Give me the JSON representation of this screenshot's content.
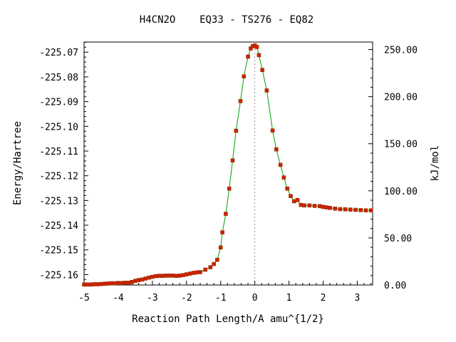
{
  "chart_data": {
    "type": "line",
    "title": "H4CN2O    EQ33 - TS276 - EQ82",
    "xlabel": "Reaction Path Length/A amu^{1/2}",
    "ylabel_left": "Energy/Hartree",
    "ylabel_right": "kJ/mol",
    "xlim": [
      -5.0,
      3.45
    ],
    "ylim_left": [
      -225.1642,
      -225.0659
    ],
    "ylim_right": [
      0,
      258
    ],
    "x_ticks": [
      -5,
      -4,
      -3,
      -2,
      -1,
      0,
      1,
      2,
      3
    ],
    "x_tick_labels": [
      "-5",
      "-4",
      "-3",
      "-2",
      "-1",
      "0",
      "1",
      "2",
      "3"
    ],
    "y_ticks_left": [
      -225.07,
      -225.08,
      -225.09,
      -225.1,
      -225.11,
      -225.12,
      -225.13,
      -225.14,
      -225.15,
      -225.16
    ],
    "y_tick_labels_left": [
      "-225.07",
      "-225.08",
      "-225.09",
      "-225.10",
      "-225.11",
      "-225.12",
      "-225.13",
      "-225.14",
      "-225.15",
      "-225.16"
    ],
    "y_ticks_right": [
      0,
      50,
      100,
      150,
      200,
      250
    ],
    "y_tick_labels_right": [
      "0.00",
      "50.00",
      "100.00",
      "150.00",
      "200.00",
      "250.00"
    ],
    "ts_marker_x": 0.0,
    "series": [
      {
        "line_color": "#00a000",
        "marker_color": "#cc2200",
        "points": [
          [
            -5.0,
            -225.164
          ],
          [
            -4.9,
            -225.164
          ],
          [
            -4.8,
            -225.164
          ],
          [
            -4.7,
            -225.1639
          ],
          [
            -4.6,
            -225.1639
          ],
          [
            -4.5,
            -225.1638
          ],
          [
            -4.4,
            -225.1637
          ],
          [
            -4.3,
            -225.1636
          ],
          [
            -4.2,
            -225.1635
          ],
          [
            -4.1,
            -225.1635
          ],
          [
            -4.0,
            -225.1634
          ],
          [
            -3.9,
            -225.1634
          ],
          [
            -3.8,
            -225.1633
          ],
          [
            -3.7,
            -225.1633
          ],
          [
            -3.6,
            -225.163
          ],
          [
            -3.5,
            -225.1625
          ],
          [
            -3.4,
            -225.1622
          ],
          [
            -3.3,
            -225.162
          ],
          [
            -3.2,
            -225.1616
          ],
          [
            -3.1,
            -225.1612
          ],
          [
            -3.0,
            -225.1609
          ],
          [
            -2.9,
            -225.1606
          ],
          [
            -2.8,
            -225.1605
          ],
          [
            -2.7,
            -225.1605
          ],
          [
            -2.6,
            -225.1604
          ],
          [
            -2.5,
            -225.1604
          ],
          [
            -2.4,
            -225.1604
          ],
          [
            -2.3,
            -225.1605
          ],
          [
            -2.2,
            -225.1604
          ],
          [
            -2.1,
            -225.1602
          ],
          [
            -2.0,
            -225.1599
          ],
          [
            -1.9,
            -225.1596
          ],
          [
            -1.8,
            -225.1593
          ],
          [
            -1.7,
            -225.1591
          ],
          [
            -1.6,
            -225.159
          ],
          [
            -1.45,
            -225.158
          ],
          [
            -1.3,
            -225.157
          ],
          [
            -1.2,
            -225.1557
          ],
          [
            -1.1,
            -225.154
          ],
          [
            -1.0,
            -225.149
          ],
          [
            -0.95,
            -225.1429
          ],
          [
            -0.85,
            -225.1354
          ],
          [
            -0.75,
            -225.1252
          ],
          [
            -0.65,
            -225.1138
          ],
          [
            -0.55,
            -225.1018
          ],
          [
            -0.42,
            -225.0898
          ],
          [
            -0.32,
            -225.0798
          ],
          [
            -0.2,
            -225.0718
          ],
          [
            -0.12,
            -225.0685
          ],
          [
            -0.06,
            -225.0676
          ],
          [
            0.0,
            -225.0673
          ],
          [
            0.06,
            -225.0679
          ],
          [
            0.12,
            -225.0712
          ],
          [
            0.22,
            -225.0772
          ],
          [
            0.35,
            -225.0855
          ],
          [
            0.52,
            -225.1017
          ],
          [
            0.63,
            -225.1093
          ],
          [
            0.75,
            -225.1156
          ],
          [
            0.85,
            -225.1207
          ],
          [
            0.95,
            -225.1252
          ],
          [
            1.05,
            -225.1282
          ],
          [
            1.15,
            -225.1303
          ],
          [
            1.25,
            -225.1298
          ],
          [
            1.35,
            -225.1318
          ],
          [
            1.45,
            -225.132
          ],
          [
            1.6,
            -225.132
          ],
          [
            1.75,
            -225.1322
          ],
          [
            1.9,
            -225.1323
          ],
          [
            2.0,
            -225.1326
          ],
          [
            2.1,
            -225.1328
          ],
          [
            2.2,
            -225.133
          ],
          [
            2.35,
            -225.1333
          ],
          [
            2.5,
            -225.1335
          ],
          [
            2.65,
            -225.1336
          ],
          [
            2.8,
            -225.1337
          ],
          [
            2.95,
            -225.1338
          ],
          [
            3.1,
            -225.1339
          ],
          [
            3.25,
            -225.134
          ],
          [
            3.4,
            -225.134
          ]
        ]
      }
    ]
  }
}
